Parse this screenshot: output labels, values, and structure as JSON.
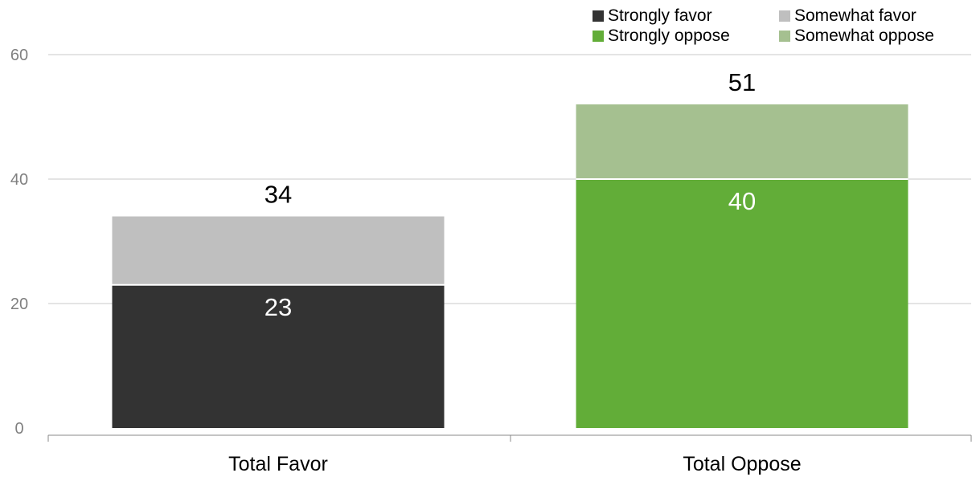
{
  "chart_data": {
    "type": "bar",
    "stacked": true,
    "categories": [
      "Total Favor",
      "Total Oppose"
    ],
    "totals": [
      34,
      51
    ],
    "series": [
      {
        "name": "Strongly favor",
        "values": [
          23,
          null
        ],
        "color": "#333333",
        "label_color": "#ffffff"
      },
      {
        "name": "Somewhat favor",
        "values": [
          11,
          null
        ],
        "color": "#bfbfbf",
        "label_color": "#ffffff"
      },
      {
        "name": "Strongly oppose",
        "values": [
          null,
          40
        ],
        "color": "#62ad38",
        "label_color": "#ffffff"
      },
      {
        "name": "Somewhat oppose",
        "values": [
          null,
          12
        ],
        "color": "#a5c090",
        "label_color": "#ffffff"
      }
    ],
    "segment_labels": [
      {
        "series": 0,
        "category": 0,
        "text": "23"
      },
      {
        "series": 2,
        "category": 1,
        "text": "40"
      }
    ],
    "total_labels": [
      "34",
      "51"
    ],
    "ylim": [
      0,
      60
    ],
    "yticks": [
      0,
      20,
      40,
      60
    ],
    "ytick_labels": [
      "0",
      "20",
      "40",
      "60"
    ],
    "grid": true,
    "legend_position": "top-right",
    "legend": [
      {
        "label": "Strongly favor",
        "color": "#333333"
      },
      {
        "label": "Somewhat favor",
        "color": "#bfbfbf"
      },
      {
        "label": "Strongly oppose",
        "color": "#62ad38"
      },
      {
        "label": "Somewhat oppose",
        "color": "#a5c090"
      }
    ]
  }
}
